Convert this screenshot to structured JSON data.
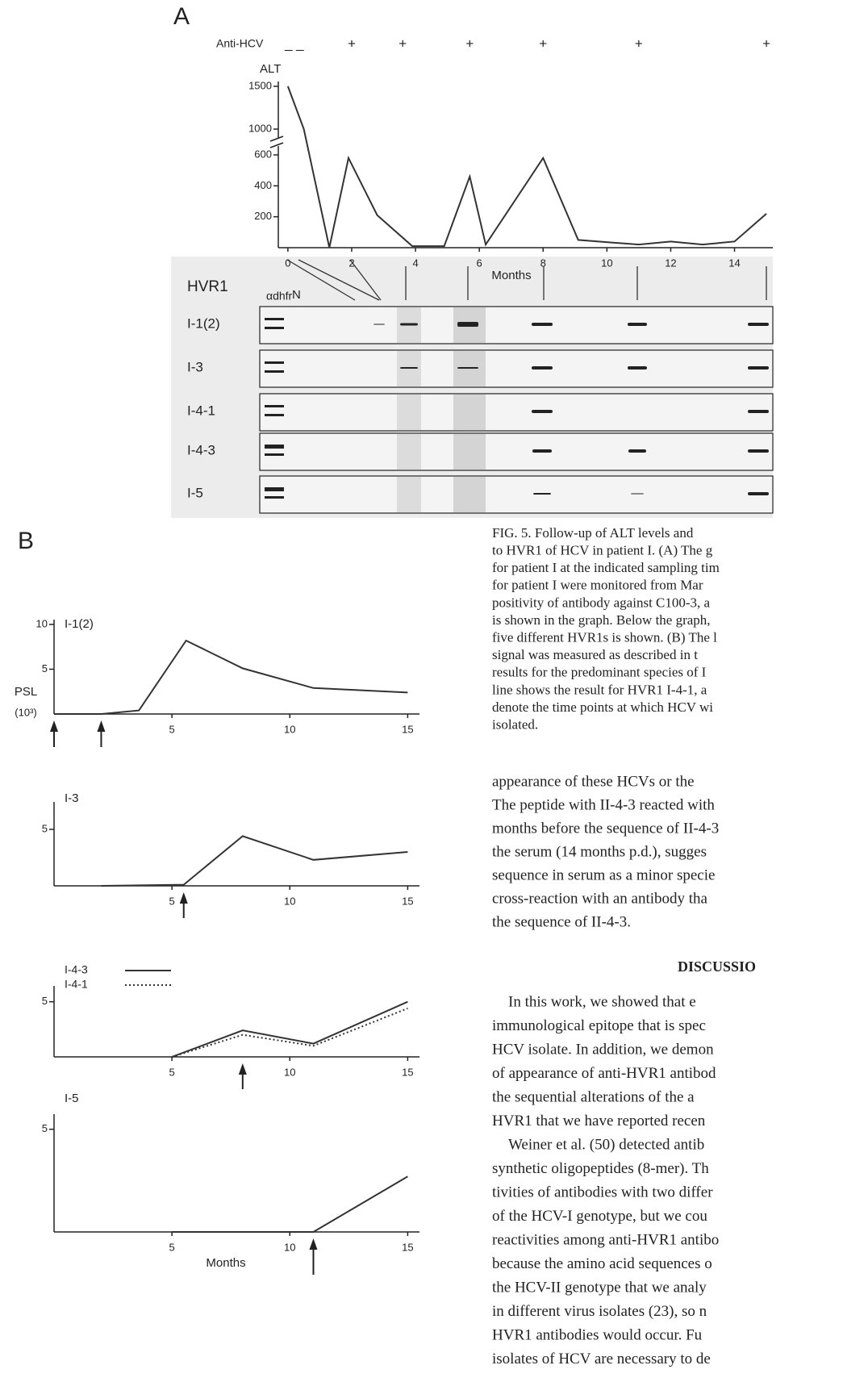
{
  "figure_labels": {
    "a": "A",
    "b": "B"
  },
  "chart_data": [
    {
      "type": "line",
      "title": "ALT",
      "x_label": "Months",
      "x": [
        0,
        0.5,
        1.3,
        1.9,
        2.8,
        3.9,
        4.9,
        5.7,
        6.2,
        8,
        9.1,
        11,
        12,
        13,
        14,
        15
      ],
      "values": [
        1500,
        1000,
        0,
        580,
        210,
        10,
        10,
        460,
        20,
        580,
        50,
        20,
        40,
        20,
        40,
        220
      ],
      "color": "#333333",
      "xlim": [
        -0.3,
        15.2
      ],
      "ylim": [
        0,
        1500
      ],
      "axis_break": [
        600,
        1000
      ],
      "xticks": [
        0,
        2,
        4,
        6,
        8,
        10,
        12,
        14
      ],
      "yticks": [
        200,
        400,
        600,
        1000,
        1500
      ],
      "anti_hcv": {
        "label": "Anti-HCV",
        "marks": [
          {
            "x": 0.2,
            "text": "_ _"
          },
          {
            "x": 2,
            "text": "+"
          },
          {
            "x": 3.6,
            "text": "+"
          },
          {
            "x": 5.7,
            "text": "+"
          },
          {
            "x": 8,
            "text": "+"
          },
          {
            "x": 11,
            "text": "+"
          },
          {
            "x": 15,
            "text": "+"
          }
        ]
      }
    },
    {
      "type": "line",
      "title": "I-1(2)",
      "y_label": "PSL",
      "y_unit": "(10³)",
      "x": [
        0,
        2,
        3.6,
        5.6,
        8,
        11,
        15
      ],
      "values": [
        0,
        0,
        0.4,
        8.2,
        5.1,
        2.9,
        2.4
      ],
      "color": "#333333",
      "xlim": [
        0,
        15.5
      ],
      "ylim": [
        0,
        10
      ],
      "xticks": [
        5,
        10,
        15
      ],
      "yticks": [
        5,
        10
      ],
      "arrows": [
        0,
        2
      ]
    },
    {
      "type": "line",
      "title": "I-3",
      "x": [
        2,
        5.5,
        8,
        11,
        15
      ],
      "values": [
        0,
        0.1,
        4.4,
        2.3,
        3.0
      ],
      "color": "#333333",
      "xlim": [
        0,
        15.5
      ],
      "ylim": [
        0,
        7
      ],
      "xticks": [
        5,
        10,
        15
      ],
      "yticks": [
        5
      ],
      "arrows": [
        5.5
      ]
    },
    {
      "type": "line",
      "x": [
        5,
        8,
        11,
        15
      ],
      "series": [
        {
          "name": "I-4-3",
          "color": "#333333",
          "line_style": "solid",
          "values": [
            0,
            2.4,
            1.2,
            5.0
          ]
        },
        {
          "name": "I-4-1",
          "color": "#333333",
          "line_style": "dotted",
          "values": [
            0,
            2.0,
            1.0,
            4.4
          ]
        }
      ],
      "xlim": [
        0,
        15.5
      ],
      "ylim": [
        0,
        6
      ],
      "xticks": [
        5,
        10,
        15
      ],
      "yticks": [
        5
      ],
      "arrows": [
        8
      ]
    },
    {
      "type": "line",
      "title": "I-5",
      "x_label": "Months",
      "x": [
        5,
        8,
        11,
        15
      ],
      "values": [
        0,
        0,
        0,
        2.7
      ],
      "color": "#333333",
      "xlim": [
        0,
        15.5
      ],
      "ylim": [
        0,
        5.5
      ],
      "xticks": [
        5,
        10,
        15
      ],
      "yticks": [
        5
      ],
      "arrows": [
        11
      ]
    }
  ],
  "blot": {
    "title": "HVR1",
    "lane_labels": [
      "αdhfr",
      "N"
    ],
    "rows": [
      "I-1(2)",
      "I-3",
      "I-4-1",
      "I-4-3",
      "I-5"
    ]
  },
  "caption": [
    "FIG. 5. Follow-up of ALT levels and",
    "to HVR1 of HCV in patient I. (A) The g",
    "for patient I at the indicated sampling tim",
    "for patient I were monitored from Mar",
    "positivity of antibody against C100-3, a",
    "is shown in the graph. Below the graph,",
    "five different HVR1s is shown. (B) The l",
    "signal was measured as described in t",
    "results for the predominant species of I",
    "line shows the result for HVR1 I-4-1, a",
    "denote the time points at which HCV wi",
    "isolated."
  ],
  "body_top": [
    "appearance of these HCVs or the",
    "The peptide with II-4-3 reacted with",
    "months before the sequence of II-4-3",
    "the serum (14 months p.d.), sugges",
    "sequence in serum as a minor specie",
    "cross-reaction with an antibody tha",
    "the sequence of II-4-3."
  ],
  "heading": "DISCUSSIO",
  "body": [
    "In this work, we showed that e",
    "immunological epitope that is spec",
    "HCV isolate. In addition, we demon",
    "of appearance of anti-HVR1 antibod",
    "the sequential alterations of the a",
    "HVR1 that we have reported recen",
    "Weiner et al. (50) detected antib",
    "synthetic oligopeptides (8-mer). Th",
    "tivities of antibodies with two differ",
    "of the HCV-I genotype, but we cou",
    "reactivities among anti-HVR1 antibo",
    "because the amino acid sequences o",
    "the HCV-II genotype that we analy",
    "in different virus isolates (23), so n",
    "HVR1 antibodies would occur. Fu",
    "isolates of HCV are necessary to de"
  ]
}
